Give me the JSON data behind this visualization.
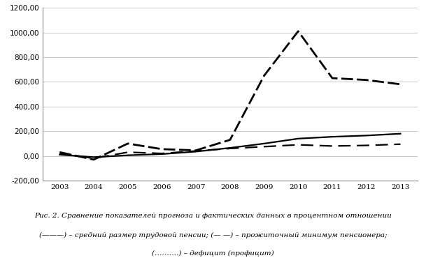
{
  "years": [
    2003,
    2004,
    2005,
    2006,
    2007,
    2008,
    2009,
    2010,
    2011,
    2012,
    2013
  ],
  "solid_line": [
    10,
    -10,
    5,
    15,
    35,
    65,
    100,
    140,
    155,
    165,
    180
  ],
  "dashed_line": [
    20,
    -20,
    30,
    20,
    40,
    60,
    75,
    90,
    80,
    85,
    95
  ],
  "dotted_line": [
    30,
    -30,
    100,
    55,
    45,
    130,
    650,
    1010,
    630,
    615,
    580
  ],
  "ylim": [
    -200,
    1200
  ],
  "yticks": [
    -200,
    0,
    200,
    400,
    600,
    800,
    1000,
    1200
  ],
  "caption_line1": "Рис. 2. Сравнение показателей прогноза и фактических данных в процентном отношении",
  "caption_line2": "(———) – средний размер трудовой пенсии; (— —) – прожиточный минимум пенсионера;",
  "caption_line3": "(……….) – дефицит (профицит)",
  "background_color": "#ffffff",
  "grid_color": "#b0b0b0",
  "line_color": "#000000",
  "font_size_ticks": 7.5,
  "font_size_caption": 7.5
}
